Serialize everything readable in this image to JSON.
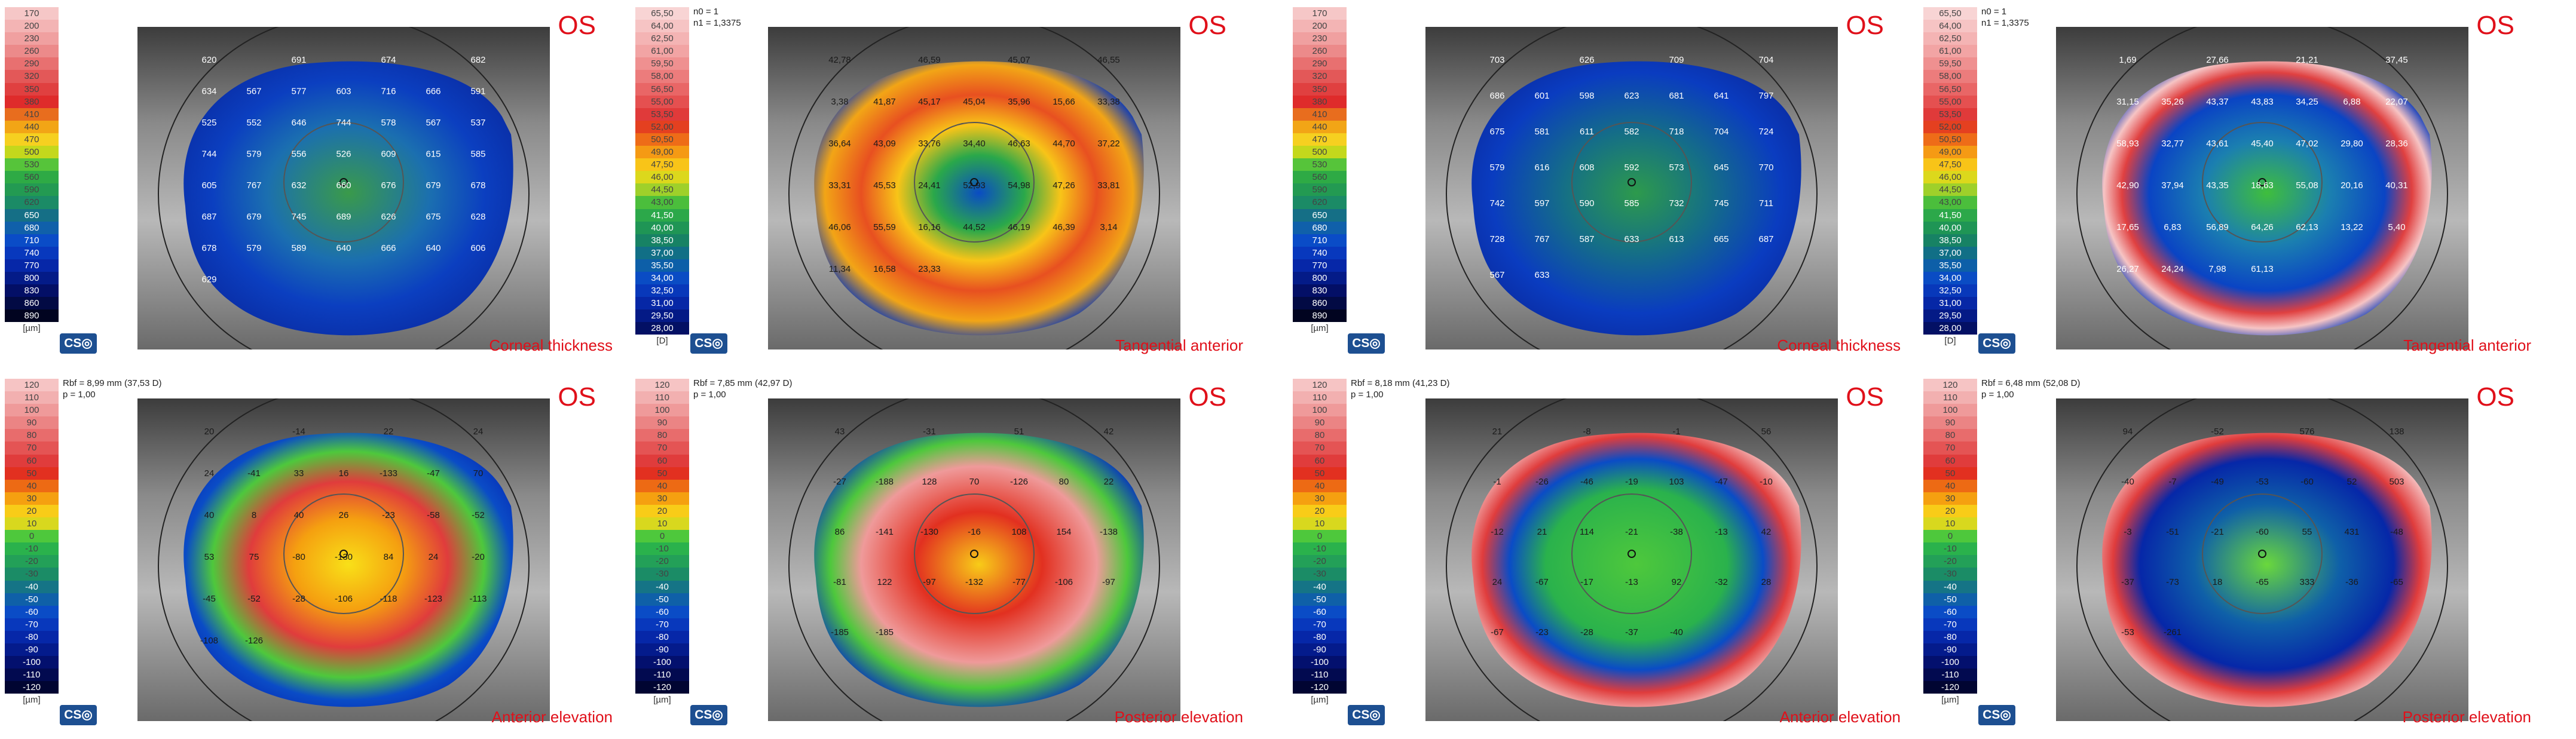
{
  "os_label": "OS",
  "scales": {
    "thickness": {
      "unit": "[µm]",
      "values": [
        "170",
        "200",
        "230",
        "260",
        "290",
        "320",
        "350",
        "380",
        "410",
        "440",
        "470",
        "500",
        "530",
        "560",
        "590",
        "620",
        "650",
        "680",
        "710",
        "740",
        "770",
        "800",
        "830",
        "860",
        "890"
      ]
    },
    "curvature": {
      "unit": "[D]",
      "values": [
        "65,50",
        "64,00",
        "62,50",
        "61,00",
        "59,50",
        "58,00",
        "56,50",
        "55,00",
        "53,50",
        "52,00",
        "50,50",
        "49,00",
        "47,50",
        "46,00",
        "44,50",
        "43,00",
        "41,50",
        "40,00",
        "38,50",
        "37,00",
        "35,50",
        "34,00",
        "32,50",
        "31,00",
        "29,50",
        "28,00"
      ]
    },
    "elevation": {
      "unit": "[µm]",
      "values": [
        "120",
        "110",
        "100",
        "90",
        "80",
        "70",
        "60",
        "50",
        "40",
        "30",
        "20",
        "10",
        "0",
        "-10",
        "-20",
        "-30",
        "-40",
        "-50",
        "-60",
        "-70",
        "-80",
        "-90",
        "-100",
        "-110",
        "-120"
      ]
    }
  },
  "colors": {
    "thickness": [
      "#f6c7c7",
      "#f3b4b4",
      "#f0a0a0",
      "#ec8a8a",
      "#e87070",
      "#e35858",
      "#e04040",
      "#df2b2b",
      "#e86d1e",
      "#f2a516",
      "#f6d020",
      "#c4d81c",
      "#56c43a",
      "#2eaa45",
      "#239a52",
      "#1b8b66",
      "#156f86",
      "#1060aa",
      "#0a4cc7",
      "#0838bd",
      "#0627a8",
      "#041b88",
      "#030f66",
      "#020a44",
      "#010420"
    ],
    "curvature": [
      "#f8d4d4",
      "#f6c4c4",
      "#f4b4b4",
      "#f2a4a4",
      "#ef9090",
      "#ec7c7c",
      "#e96666",
      "#e55050",
      "#e03a3a",
      "#e44020",
      "#ee6c18",
      "#f59a14",
      "#f8c418",
      "#dcd81c",
      "#9fd02a",
      "#4bbe3c",
      "#2ca84a",
      "#1f9555",
      "#178264",
      "#116f86",
      "#0d5fa8",
      "#0a4cc4",
      "#0838ba",
      "#0627a6",
      "#041a86",
      "#031064"
    ],
    "elevation": [
      "#f6c4c4",
      "#f2b0b0",
      "#ef9a9a",
      "#eb8484",
      "#e86c6c",
      "#e45454",
      "#e03c3c",
      "#e23020",
      "#ed6a14",
      "#f5a010",
      "#f8cc18",
      "#d8d81e",
      "#4ec83c",
      "#2ab24c",
      "#23a058",
      "#1b8c66",
      "#157486",
      "#0f60a8",
      "#0a4cc6",
      "#0838bc",
      "#0627a8",
      "#041b8c",
      "#03106e",
      "#020a50",
      "#010532"
    ]
  },
  "cso_logo": "CS◎",
  "panels": [
    {
      "id": "p1",
      "title": "Corneal thickness",
      "scale": "thickness",
      "info": [],
      "labels": [
        "620",
        "691",
        "674",
        "682",
        "634",
        "567",
        "577",
        "603",
        "716",
        "666",
        "591",
        "525",
        "552",
        "646",
        "744",
        "578",
        "567",
        "537",
        "744",
        "579",
        "556",
        "526",
        "609",
        "615",
        "585",
        "605",
        "767",
        "632",
        "660",
        "676",
        "679",
        "678",
        "687",
        "679",
        "745",
        "689",
        "626",
        "675",
        "628",
        "678",
        "579",
        "589",
        "640",
        "666",
        "640",
        "606",
        "629"
      ]
    },
    {
      "id": "p2",
      "title": "Tangential anterior",
      "scale": "curvature",
      "info": [
        "n0 = 1",
        "n1 = 1,3375"
      ],
      "labels": [
        "42,78",
        "46,59",
        "45,07",
        "46,55",
        "3,38",
        "41,87",
        "45,17",
        "45,04",
        "35,96",
        "15,66",
        "33,38",
        "36,64",
        "43,09",
        "33,76",
        "34,40",
        "46,63",
        "44,70",
        "37,22",
        "33,31",
        "45,53",
        "24,41",
        "52,93",
        "54,98",
        "47,26",
        "33,81",
        "46,06",
        "55,59",
        "16,16",
        "44,52",
        "46,19",
        "46,39",
        "3,14",
        "11,34",
        "16,58",
        "23,33"
      ]
    },
    {
      "id": "p3",
      "title": "Corneal thickness",
      "scale": "thickness",
      "info": [],
      "labels": [
        "703",
        "626",
        "709",
        "704",
        "686",
        "601",
        "598",
        "623",
        "681",
        "641",
        "797",
        "675",
        "581",
        "611",
        "582",
        "718",
        "704",
        "724",
        "579",
        "616",
        "608",
        "592",
        "573",
        "645",
        "770",
        "742",
        "597",
        "590",
        "585",
        "732",
        "745",
        "711",
        "728",
        "767",
        "587",
        "633",
        "613",
        "665",
        "687",
        "567",
        "633"
      ]
    },
    {
      "id": "p4",
      "title": "Tangential anterior",
      "scale": "curvature",
      "info": [
        "n0 = 1",
        "n1 = 1,3375"
      ],
      "labels": [
        "1,69",
        "27,66",
        "21,21",
        "37,45",
        "31,15",
        "35,26",
        "43,37",
        "43,83",
        "34,25",
        "6,88",
        "22,07",
        "58,93",
        "32,77",
        "43,61",
        "45,40",
        "47,02",
        "29,80",
        "28,36",
        "42,90",
        "37,94",
        "43,35",
        "18,63",
        "55,08",
        "20,16",
        "40,31",
        "17,65",
        "6,83",
        "56,89",
        "64,26",
        "62,13",
        "13,22",
        "5,40",
        "26,27",
        "24,24",
        "7,98",
        "61,13"
      ]
    },
    {
      "id": "p5",
      "title": "Anterior elevation",
      "scale": "elevation",
      "info": [
        "Rbf = 8,99 mm (37,53 D)",
        "p = 1,00"
      ],
      "labels": [
        "20",
        "-14",
        "22",
        "24",
        "24",
        "-41",
        "33",
        "16",
        "-133",
        "-47",
        "70",
        "40",
        "8",
        "40",
        "26",
        "-23",
        "-58",
        "-52",
        "53",
        "75",
        "-80",
        "-130",
        "84",
        "24",
        "-20",
        "-45",
        "-52",
        "-28",
        "-106",
        "-118",
        "-123",
        "-113",
        "-108",
        "-126"
      ]
    },
    {
      "id": "p6",
      "title": "Posterior elevation",
      "scale": "elevation",
      "info": [
        "Rbf = 7,85 mm (42,97 D)",
        "p = 1,00"
      ],
      "labels": [
        "43",
        "-31",
        "51",
        "42",
        "-27",
        "-188",
        "128",
        "70",
        "-126",
        "80",
        "22",
        "86",
        "-141",
        "-130",
        "-16",
        "108",
        "154",
        "-138",
        "-81",
        "122",
        "-97",
        "-132",
        "-77",
        "-106",
        "-97",
        "-185",
        "-185"
      ]
    },
    {
      "id": "p7",
      "title": "Anterior elevation",
      "scale": "elevation",
      "info": [
        "Rbf = 8,18 mm (41,23 D)",
        "p = 1,00"
      ],
      "labels": [
        "21",
        "-8",
        "-1",
        "56",
        "-1",
        "-26",
        "-46",
        "-19",
        "103",
        "-47",
        "-10",
        "-12",
        "21",
        "114",
        "-21",
        "-38",
        "-13",
        "42",
        "24",
        "-67",
        "-17",
        "-13",
        "92",
        "-32",
        "28",
        "-67",
        "-23",
        "-28",
        "-37",
        "-40"
      ]
    },
    {
      "id": "p8",
      "title": "Posterior elevation",
      "scale": "elevation",
      "info": [
        "Rbf = 6,48 mm (52,08 D)",
        "p = 1,00"
      ],
      "labels": [
        "94",
        "-52",
        "576",
        "138",
        "-40",
        "-7",
        "-49",
        "-53",
        "-60",
        "52",
        "503",
        "-3",
        "-51",
        "-21",
        "-60",
        "55",
        "431",
        "-48",
        "-37",
        "-73",
        "18",
        "-65",
        "333",
        "-36",
        "-65",
        "-53",
        "-261"
      ]
    }
  ]
}
